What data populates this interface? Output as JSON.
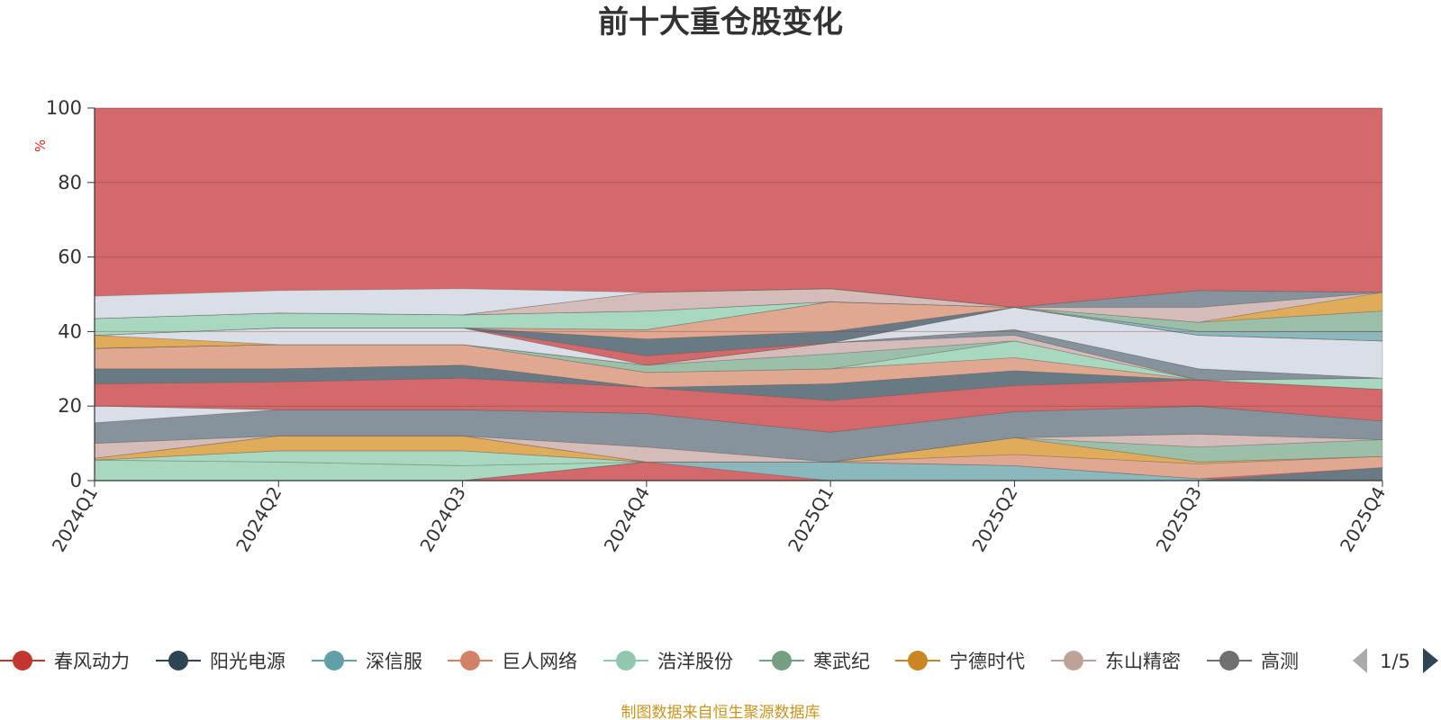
{
  "chart_data": {
    "type": "area",
    "title": "前十大重仓股变化",
    "ylabel": "%",
    "ylim": [
      0,
      100
    ],
    "yticks": [
      "0",
      "20",
      "40",
      "60",
      "80",
      "100"
    ],
    "categories": [
      "2024Q1",
      "2024Q2",
      "2024Q3",
      "2024Q4",
      "2025Q1",
      "2025Q2",
      "2025Q3",
      "2025Q4"
    ],
    "bands": [
      {
        "color": "#a8d8c0",
        "lower": [
          0,
          0,
          0,
          5,
          5,
          4,
          0.5,
          0
        ],
        "upper": [
          5.5,
          5,
          4,
          5,
          5,
          4,
          0.5,
          0
        ]
      },
      {
        "color": "#d4696b",
        "lower": [
          0,
          0,
          0,
          0,
          0,
          0,
          0,
          0
        ],
        "upper": [
          0,
          0,
          0,
          5,
          0,
          0,
          0,
          0
        ]
      },
      {
        "color": "#8ab8bc",
        "lower": [
          0,
          0,
          0,
          5,
          0,
          0,
          0,
          0
        ],
        "upper": [
          0,
          0,
          0,
          5,
          5,
          4,
          0.5,
          0
        ]
      },
      {
        "color": "#6a7a85",
        "lower": [
          0,
          0,
          0,
          0,
          0,
          0,
          0,
          0
        ],
        "upper": [
          0,
          0,
          0,
          0,
          0,
          0,
          0,
          3.5
        ]
      },
      {
        "color": "#a8d8c0",
        "lower": [
          5.5,
          5,
          4,
          5,
          5,
          4,
          0.5,
          0
        ],
        "upper": [
          5.5,
          8,
          8,
          5,
          5,
          4,
          0.5,
          0
        ]
      },
      {
        "color": "#e0a890",
        "lower": [
          5.5,
          8,
          8,
          5,
          5,
          4,
          0.5,
          3.5
        ],
        "upper": [
          5.5,
          8,
          8,
          5,
          5,
          7,
          4.5,
          6.5
        ]
      },
      {
        "color": "#e0ac5a",
        "lower": [
          5.5,
          8,
          8,
          5,
          5,
          7,
          4.5,
          6.5
        ],
        "upper": [
          6,
          12,
          12,
          5,
          5,
          11.5,
          5,
          6.5
        ]
      },
      {
        "color": "#9cbfa8",
        "lower": [
          6,
          12,
          12,
          5,
          5,
          11.5,
          5,
          6.5
        ],
        "upper": [
          6,
          12,
          12,
          5,
          5,
          11.5,
          9,
          11
        ]
      },
      {
        "color": "#d6bcb8",
        "lower": [
          6,
          12,
          12,
          5,
          5,
          11.5,
          9,
          11
        ],
        "upper": [
          10,
          12,
          12,
          9,
          5,
          11.5,
          12.5,
          11
        ]
      },
      {
        "color": "#86939d",
        "lower": [
          10,
          12,
          12,
          9,
          5,
          11.5,
          12.5,
          11
        ],
        "upper": [
          15.5,
          19,
          19,
          18,
          13,
          18.5,
          20,
          16
        ]
      },
      {
        "color": "#dadee6",
        "lower": [
          15.5,
          19,
          19,
          18,
          13,
          18.5,
          20,
          16
        ],
        "upper": [
          20,
          19,
          19,
          18,
          13,
          18.5,
          20,
          16
        ]
      },
      {
        "color": "#d4696b",
        "lower": [
          20,
          19,
          19,
          18,
          13,
          18.5,
          20,
          16
        ],
        "upper": [
          26,
          26.5,
          27.5,
          25,
          21.5,
          25.5,
          27,
          24.5
        ]
      },
      {
        "color": "#6a7a85",
        "lower": [
          26,
          26.5,
          27.5,
          25,
          21.5,
          25.5,
          27,
          24.5
        ],
        "upper": [
          30,
          30,
          31,
          25,
          26,
          29.5,
          27,
          24.5
        ]
      },
      {
        "color": "#e0a890",
        "lower": [
          30,
          30,
          31,
          25,
          26,
          29.5,
          27,
          24.5
        ],
        "upper": [
          35.5,
          36.5,
          36.5,
          29,
          30,
          33,
          27,
          24.5
        ]
      },
      {
        "color": "#a8d8c0",
        "lower": [
          35.5,
          36.5,
          36.5,
          29,
          30,
          33,
          27,
          24.5
        ],
        "upper": [
          35.5,
          36.5,
          36.5,
          29,
          30,
          37.5,
          27,
          27.5
        ]
      },
      {
        "color": "#9cbfa8",
        "lower": [
          35.5,
          36.5,
          36.5,
          29,
          30,
          37.5,
          27,
          27.5
        ],
        "upper": [
          35.5,
          36.5,
          36.5,
          31,
          34,
          37.5,
          27,
          27.5
        ]
      },
      {
        "color": "#d6bcb8",
        "lower": [
          35.5,
          36.5,
          36.5,
          31,
          34,
          37.5,
          27,
          27.5
        ],
        "upper": [
          35.5,
          36.5,
          36.5,
          31,
          37,
          39,
          27,
          27.5
        ]
      },
      {
        "color": "#86939d",
        "lower": [
          35.5,
          36.5,
          36.5,
          31,
          37,
          39,
          27,
          27.5
        ],
        "upper": [
          35.5,
          36.5,
          36.5,
          31,
          37,
          40.5,
          30,
          27.5
        ]
      },
      {
        "color": "#e0ac5a",
        "lower": [
          35.5,
          36.5,
          36.5,
          31,
          37,
          40.5,
          30,
          27.5
        ],
        "upper": [
          39,
          36.5,
          36.5,
          31,
          37,
          40.5,
          30,
          27.5
        ]
      },
      {
        "color": "#dadee6",
        "lower": [
          39,
          36.5,
          36.5,
          31,
          37,
          40.5,
          30,
          27.5
        ],
        "upper": [
          39,
          41,
          41,
          31,
          37,
          46.5,
          39,
          37.5
        ]
      },
      {
        "color": "#d4696b",
        "lower": [
          39,
          41,
          41,
          31,
          37,
          46.5,
          39,
          37.5
        ],
        "upper": [
          39,
          41,
          41,
          33.5,
          37,
          46.5,
          39,
          37.5
        ]
      },
      {
        "color": "#6a7a85",
        "lower": [
          39,
          41,
          41,
          33.5,
          37,
          46.5,
          39,
          37.5
        ],
        "upper": [
          39,
          41,
          41,
          38,
          40,
          46.5,
          39,
          37.5
        ]
      },
      {
        "color": "#e0a890",
        "lower": [
          39,
          41,
          41,
          38,
          40,
          46.5,
          39,
          37.5
        ],
        "upper": [
          39,
          41,
          41,
          40.5,
          48,
          46.5,
          39,
          37.5
        ]
      },
      {
        "color": "#8ab8bc",
        "lower": [
          39,
          41,
          41,
          40.5,
          48,
          46.5,
          39,
          37.5
        ],
        "upper": [
          39,
          41,
          41,
          40.5,
          48,
          46.5,
          40,
          40
        ]
      },
      {
        "color": "#a8d8c0",
        "lower": [
          39,
          41,
          41,
          40.5,
          48,
          46.5,
          40,
          40
        ],
        "upper": [
          43.5,
          45,
          44.5,
          45.5,
          48,
          46.5,
          40,
          40
        ]
      },
      {
        "color": "#9cbfa8",
        "lower": [
          43.5,
          45,
          44.5,
          45.5,
          48,
          46.5,
          40,
          40
        ],
        "upper": [
          43.5,
          45,
          44.5,
          45.5,
          48,
          46.5,
          42.5,
          45.5
        ]
      },
      {
        "color": "#e0ac5a",
        "lower": [
          43.5,
          45,
          44.5,
          45.5,
          48,
          46.5,
          42.5,
          45.5
        ],
        "upper": [
          43.5,
          45,
          44.5,
          45.5,
          48,
          46.5,
          42.5,
          50.5
        ]
      },
      {
        "color": "#d6bcb8",
        "lower": [
          43.5,
          45,
          44.5,
          45.5,
          48,
          46.5,
          42.5,
          50.5
        ],
        "upper": [
          43.5,
          45,
          44.5,
          50.5,
          51.5,
          46.5,
          46.5,
          50.5
        ]
      },
      {
        "color": "#86939d",
        "lower": [
          43.5,
          45,
          44.5,
          50.5,
          51.5,
          46.5,
          46.5,
          50.5
        ],
        "upper": [
          43.5,
          45,
          44.5,
          50.5,
          51.5,
          46.5,
          51,
          50.5
        ]
      },
      {
        "color": "#dadee6",
        "lower": [
          43.5,
          45,
          44.5,
          50.5,
          51.5,
          46.5,
          51,
          50.5
        ],
        "upper": [
          49.5,
          51,
          51.5,
          50.5,
          51.5,
          46.5,
          51,
          50.5
        ]
      }
    ],
    "top_fill_color": "#d4696b",
    "series": [
      {
        "name": "春风动力",
        "color": "#c23531"
      },
      {
        "name": "阳光电源",
        "color": "#2f4554"
      },
      {
        "name": "深信服",
        "color": "#61a0a8"
      },
      {
        "name": "巨人网络",
        "color": "#d48265"
      },
      {
        "name": "浩洋股份",
        "color": "#91c7ae"
      },
      {
        "name": "寒武纪",
        "color": "#749f83"
      },
      {
        "name": "宁德时代",
        "color": "#ca8622"
      },
      {
        "name": "东山精密",
        "color": "#bda29a"
      },
      {
        "name": "高测股份",
        "color": "#6e7074"
      }
    ],
    "legend_visible_text": [
      "春风动力",
      "阳光电源",
      "深信服",
      "巨人网络",
      "浩洋股份",
      "寒武纪",
      "宁德时代",
      "东山精密",
      "高测"
    ],
    "legend_page": "1/5",
    "grid": true,
    "legend_position": "bottom"
  },
  "footer": "制图数据来自恒生聚源数据库"
}
